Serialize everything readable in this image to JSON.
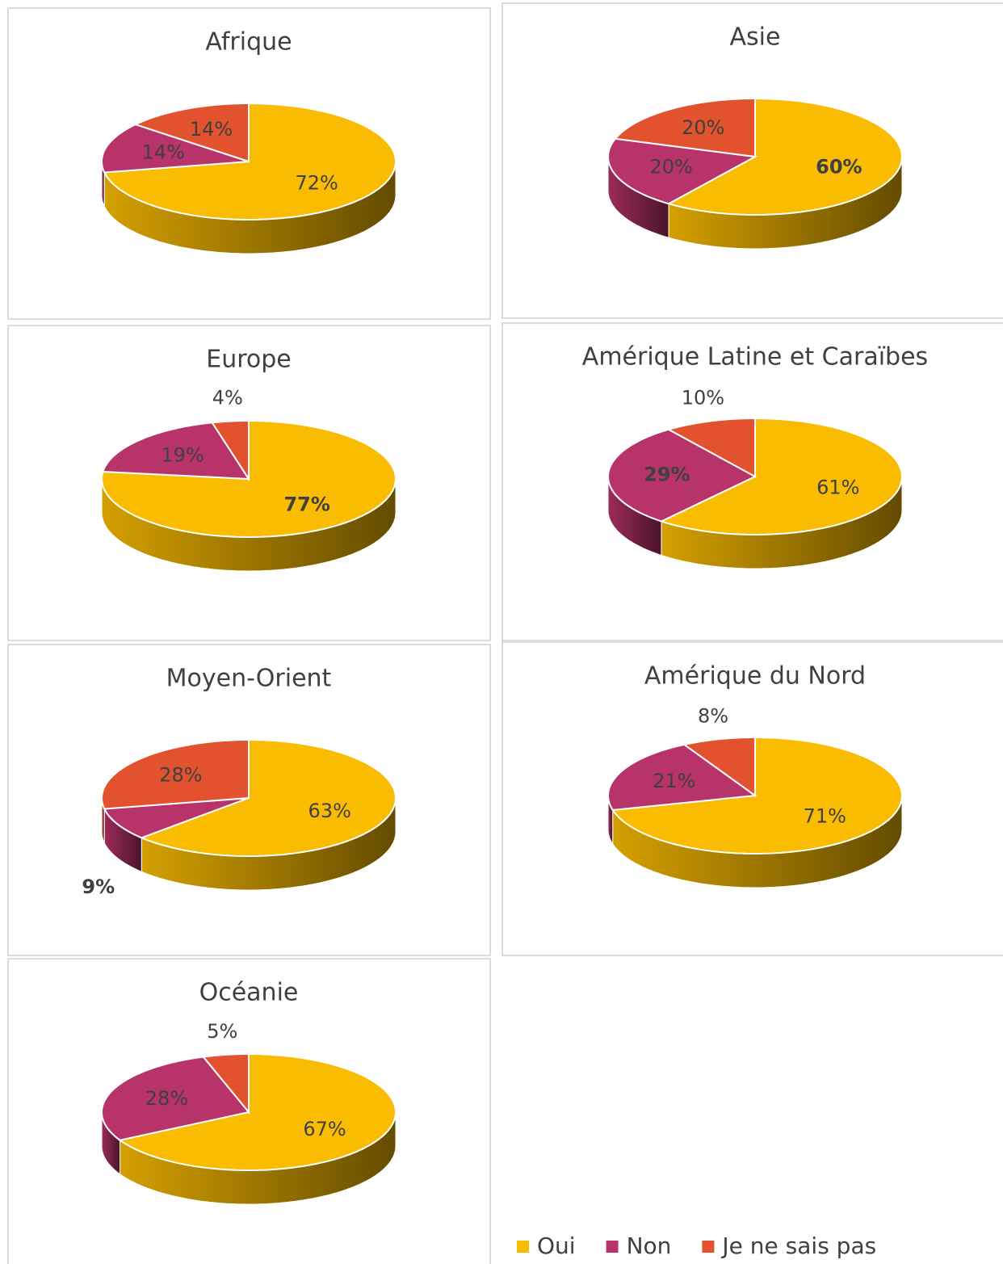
{
  "legend": {
    "labels": [
      "Oui",
      "Non",
      "Je ne sais pas"
    ],
    "colors": [
      "#f9bc00",
      "#b8336a",
      "#e2522f"
    ]
  },
  "chart_data": [
    {
      "type": "pie",
      "title": "Afrique",
      "values": [
        72,
        14,
        14
      ],
      "value_labels": [
        "72%",
        "14%",
        "14%"
      ],
      "bold": [
        false,
        false,
        false
      ]
    },
    {
      "type": "pie",
      "title": "Asie",
      "values": [
        60,
        20,
        20
      ],
      "value_labels": [
        "60%",
        "20%",
        "20%"
      ],
      "bold": [
        true,
        false,
        false
      ]
    },
    {
      "type": "pie",
      "title": "Europe",
      "values": [
        77,
        19,
        4
      ],
      "value_labels": [
        "77%",
        "19%",
        "4%"
      ],
      "bold": [
        true,
        false,
        false
      ]
    },
    {
      "type": "pie",
      "title": "Amérique Latine et Caraïbes",
      "values": [
        61,
        29,
        10
      ],
      "value_labels": [
        "61%",
        "29%",
        "10%"
      ],
      "bold": [
        false,
        true,
        false
      ]
    },
    {
      "type": "pie",
      "title": "Moyen-Orient",
      "values": [
        63,
        9,
        28
      ],
      "value_labels": [
        "63%",
        "9%",
        "28%"
      ],
      "bold": [
        false,
        true,
        false
      ]
    },
    {
      "type": "pie",
      "title": "Amérique du Nord",
      "values": [
        71,
        21,
        8
      ],
      "value_labels": [
        "71%",
        "21%",
        "8%"
      ],
      "bold": [
        false,
        false,
        false
      ]
    },
    {
      "type": "pie",
      "title": "Océanie",
      "values": [
        67,
        28,
        5
      ],
      "value_labels": [
        "67%",
        "28%",
        "5%"
      ],
      "bold": [
        false,
        false,
        false
      ]
    }
  ]
}
